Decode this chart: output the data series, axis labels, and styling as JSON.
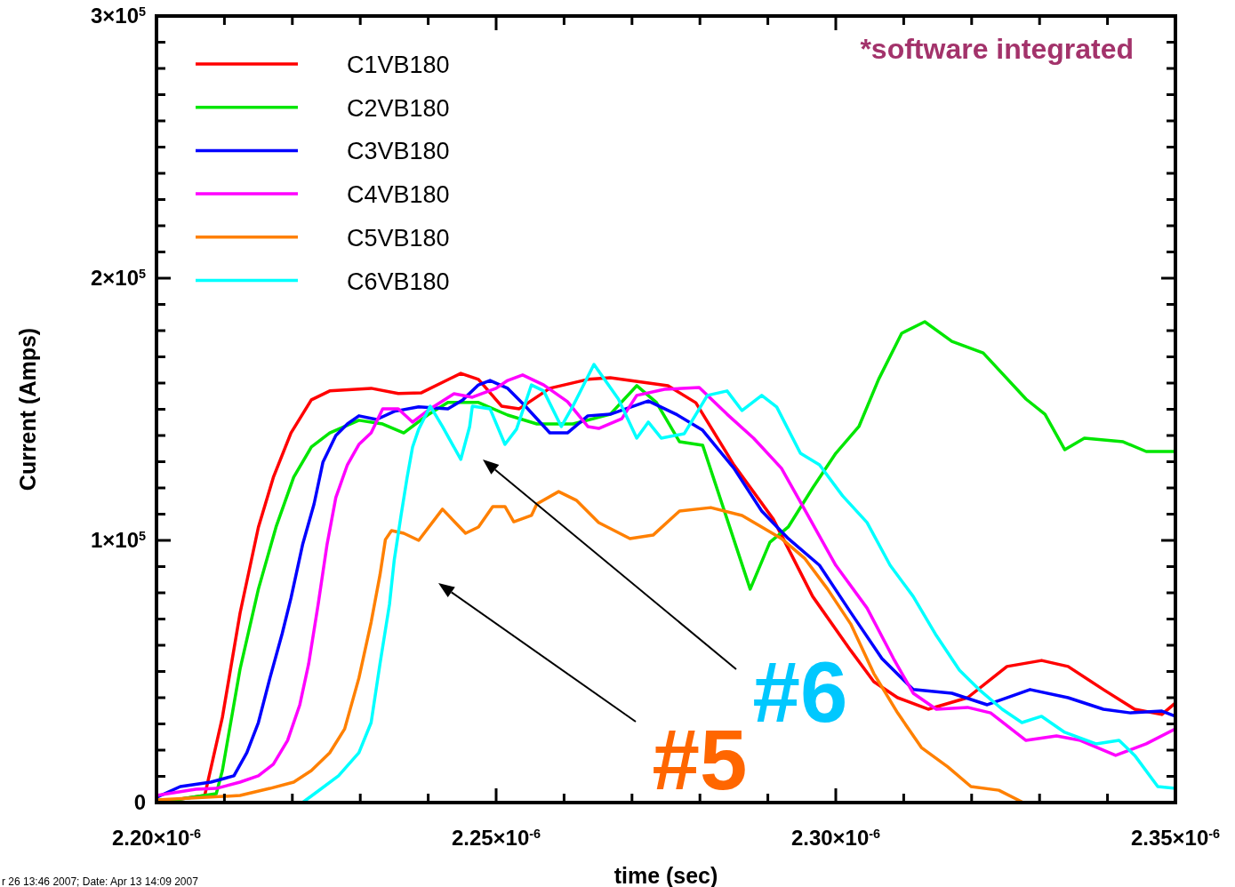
{
  "chart_data": {
    "type": "line",
    "xlabel": "time (sec)",
    "ylabel": "Current (Amps)",
    "legend": "top left",
    "marker": "none",
    "line_style": "solid",
    "grid": false,
    "xlim": [
      2.2e-06,
      2.35e-06
    ],
    "ylim": [
      0,
      300000
    ],
    "xticks": [
      {
        "value": 2.2e-06,
        "label": "2.20×10$^{-6}$"
      },
      {
        "value": 2.21e-06,
        "label": null
      },
      {
        "value": 2.22e-06,
        "label": null
      },
      {
        "value": 2.23e-06,
        "label": null
      },
      {
        "value": 2.24e-06,
        "label": null
      },
      {
        "value": 2.25e-06,
        "label": "2.25×10$^{-6}$"
      },
      {
        "value": 2.26e-06,
        "label": null
      },
      {
        "value": 2.27e-06,
        "label": null
      },
      {
        "value": 2.28e-06,
        "label": null
      },
      {
        "value": 2.29e-06,
        "label": null
      },
      {
        "value": 2.3e-06,
        "label": "2.30×10$^{-6}$"
      },
      {
        "value": 2.31e-06,
        "label": null
      },
      {
        "value": 2.32e-06,
        "label": null
      },
      {
        "value": 2.33e-06,
        "label": null
      },
      {
        "value": 2.34e-06,
        "label": null
      },
      {
        "value": 2.35e-06,
        "label": "2.35×10$^{-6}$"
      }
    ],
    "yticks": [
      0,
      {
        "value": 10000,
        "label": null
      },
      {
        "value": 20000,
        "label": null
      },
      {
        "value": 30000,
        "label": null
      },
      {
        "value": 40000,
        "label": null
      },
      {
        "value": 50000,
        "label": null
      },
      {
        "value": 60000,
        "label": null
      },
      {
        "value": 70000,
        "label": null
      },
      {
        "value": 80000,
        "label": null
      },
      {
        "value": 90000,
        "label": null
      },
      {
        "value": 100000,
        "label": "1×10$^{5}$"
      },
      {
        "value": 110000,
        "label": null
      },
      {
        "value": 120000,
        "label": null
      },
      {
        "value": 130000,
        "label": null
      },
      {
        "value": 140000,
        "label": null
      },
      {
        "value": 150000,
        "label": null
      },
      {
        "value": 160000,
        "label": null
      },
      {
        "value": 170000,
        "label": null
      },
      {
        "value": 180000,
        "label": null
      },
      {
        "value": 190000,
        "label": null
      },
      {
        "value": 200000,
        "label": "2×10$^{5}$"
      },
      {
        "value": 210000,
        "label": null
      },
      {
        "value": 220000,
        "label": null
      },
      {
        "value": 230000,
        "label": null
      },
      {
        "value": 240000,
        "label": null
      },
      {
        "value": 250000,
        "label": null
      },
      {
        "value": 260000,
        "label": null
      },
      {
        "value": 270000,
        "label": null
      },
      {
        "value": 280000,
        "label": null
      },
      {
        "value": 290000,
        "label": null
      },
      {
        "value": 300000,
        "label": "3×10$^{5}$"
      }
    ],
    "annotations": [
      "*software integrated",
      "#6",
      "#5",
      "r 26 13:46 2007; Date: Apr 13 14:09 2007"
    ],
    "series": [
      {
        "name": "C1VB180",
        "color": "#ff0000",
        "x": [
          2.2e-06,
          2.2071e-06,
          2.2097e-06,
          2.2123e-06,
          2.215e-06,
          2.2172e-06,
          2.2198e-06,
          2.2228e-06,
          2.2255e-06,
          2.2316e-06,
          2.2356e-06,
          2.239e-06,
          2.2448e-06,
          2.2474e-06,
          2.2508e-06,
          2.2534e-06,
          2.2579e-06,
          2.2635e-06,
          2.2668e-06,
          2.2753e-06,
          2.2794e-06,
          2.285e-06,
          2.2908e-06,
          2.2966e-06,
          2.3022e-06,
          2.3056e-06,
          2.3091e-06,
          2.3136e-06,
          2.3194e-06,
          2.3252e-06,
          2.3303e-06,
          2.3342e-06,
          2.3394e-06,
          2.344e-06,
          2.348e-06,
          2.35e-06
        ],
        "values": [
          0,
          2700,
          32500,
          72200,
          105000,
          124000,
          141000,
          153600,
          157000,
          158000,
          156000,
          156300,
          163700,
          161400,
          151200,
          150200,
          158000,
          161400,
          162000,
          159000,
          152500,
          128800,
          108100,
          78600,
          58000,
          46100,
          40000,
          35600,
          40000,
          51900,
          54200,
          51900,
          43100,
          35600,
          33600,
          38000
        ]
      },
      {
        "name": "C2VB180",
        "color": "#00e600",
        "x": [
          2.2e-06,
          2.2088e-06,
          2.2097e-06,
          2.2123e-06,
          2.215e-06,
          2.2176e-06,
          2.2202e-06,
          2.2228e-06,
          2.2255e-06,
          2.2298e-06,
          2.2333e-06,
          2.2364e-06,
          2.2399e-06,
          2.2429e-06,
          2.2474e-06,
          2.2517e-06,
          2.256e-06,
          2.2613e-06,
          2.2668e-06,
          2.2707e-06,
          2.2736e-06,
          2.277e-06,
          2.2804e-06,
          2.284e-06,
          2.2874e-06,
          2.2903e-06,
          2.293e-06,
          2.2966e-06,
          2.3e-06,
          2.3034e-06,
          2.3063e-06,
          2.3097e-06,
          2.3131e-06,
          2.3171e-06,
          2.3217e-06,
          2.328e-06,
          2.3308e-06,
          2.3337e-06,
          2.3366e-06,
          2.3423e-06,
          2.3457e-06,
          2.35e-06
        ],
        "values": [
          0,
          3400,
          12200,
          50900,
          81400,
          105100,
          124100,
          135600,
          141000,
          145800,
          144400,
          141000,
          147800,
          152600,
          152600,
          147800,
          144400,
          144400,
          148100,
          159000,
          152600,
          137600,
          136300,
          108100,
          81400,
          99300,
          105100,
          120000,
          133200,
          143400,
          161400,
          179000,
          183400,
          175900,
          171500,
          153900,
          148100,
          134600,
          139000,
          137600,
          133900,
          133900
        ]
      },
      {
        "name": "C3VB180",
        "color": "#0000ff",
        "x": [
          2.2e-06,
          2.2035e-06,
          2.208e-06,
          2.2114e-06,
          2.2133e-06,
          2.215e-06,
          2.2167e-06,
          2.2185e-06,
          2.2198e-06,
          2.2215e-06,
          2.2232e-06,
          2.2245e-06,
          2.2264e-06,
          2.2281e-06,
          2.2298e-06,
          2.2324e-06,
          2.235e-06,
          2.2386e-06,
          2.2429e-06,
          2.2451e-06,
          2.2474e-06,
          2.2491e-06,
          2.2517e-06,
          2.2543e-06,
          2.2579e-06,
          2.2605e-06,
          2.2635e-06,
          2.2668e-06,
          2.2724e-06,
          2.2765e-06,
          2.2804e-06,
          2.285e-06,
          2.2891e-06,
          2.293e-06,
          2.2976e-06,
          2.3022e-06,
          2.3068e-06,
          2.3114e-06,
          2.3171e-06,
          2.3223e-06,
          2.3286e-06,
          2.3342e-06,
          2.3394e-06,
          2.3434e-06,
          2.348e-06,
          2.35e-06
        ],
        "values": [
          2000,
          6100,
          7800,
          10200,
          19000,
          30500,
          47500,
          64400,
          78000,
          98300,
          113900,
          129800,
          140000,
          144400,
          147500,
          146100,
          149200,
          150900,
          150200,
          153600,
          159300,
          161000,
          158000,
          151200,
          141000,
          141000,
          147500,
          148100,
          153200,
          148100,
          142000,
          127500,
          111200,
          100700,
          90500,
          72500,
          54900,
          43100,
          41700,
          37300,
          43100,
          40000,
          35600,
          34200,
          34900,
          32900
        ]
      },
      {
        "name": "C4VB180",
        "color": "#ff00ff",
        "x": [
          2.2e-06,
          2.2058e-06,
          2.2088e-06,
          2.2123e-06,
          2.215e-06,
          2.2172e-06,
          2.2193e-06,
          2.2211e-06,
          2.2224e-06,
          2.2238e-06,
          2.2251e-06,
          2.2264e-06,
          2.2281e-06,
          2.2298e-06,
          2.2316e-06,
          2.2333e-06,
          2.2356e-06,
          2.2377e-06,
          2.2403e-06,
          2.2438e-06,
          2.2465e-06,
          2.25e-06,
          2.2517e-06,
          2.2539e-06,
          2.257e-06,
          2.2605e-06,
          2.2635e-06,
          2.2651e-06,
          2.2685e-06,
          2.2707e-06,
          2.2748e-06,
          2.2799e-06,
          2.284e-06,
          2.2879e-06,
          2.292e-06,
          2.2959e-06,
          2.3e-06,
          2.3046e-06,
          2.3085e-06,
          2.3114e-06,
          2.3148e-06,
          2.3194e-06,
          2.3228e-06,
          2.328e-06,
          2.3325e-06,
          2.336e-06,
          2.3412e-06,
          2.3457e-06,
          2.35e-06
        ],
        "values": [
          2700,
          5100,
          5400,
          7800,
          10200,
          14600,
          23700,
          37300,
          52900,
          75600,
          98300,
          116300,
          128800,
          136600,
          141000,
          150200,
          150200,
          145100,
          150200,
          155900,
          154600,
          158000,
          161000,
          163100,
          159300,
          152900,
          143400,
          142700,
          146400,
          155300,
          157600,
          158300,
          148100,
          139000,
          127500,
          109500,
          90500,
          74200,
          54900,
          41700,
          35600,
          36300,
          34200,
          23700,
          25400,
          23700,
          18000,
          22400,
          28100
        ]
      },
      {
        "name": "C5VB180",
        "color": "#ff8000",
        "x": [
          2.2e-06,
          2.2123e-06,
          2.2167e-06,
          2.2202e-06,
          2.2228e-06,
          2.2255e-06,
          2.2277e-06,
          2.2298e-06,
          2.2316e-06,
          2.2329e-06,
          2.2337e-06,
          2.2346e-06,
          2.2364e-06,
          2.2386e-06,
          2.2421e-06,
          2.2455e-06,
          2.2474e-06,
          2.2495e-06,
          2.2513e-06,
          2.2526e-06,
          2.2552e-06,
          2.256e-06,
          2.2592e-06,
          2.2618e-06,
          2.2651e-06,
          2.2697e-06,
          2.2731e-06,
          2.277e-06,
          2.2816e-06,
          2.2862e-06,
          2.2891e-06,
          2.292e-06,
          2.2954e-06,
          2.2988e-06,
          2.3022e-06,
          2.3056e-06,
          2.3091e-06,
          2.3126e-06,
          2.3165e-06,
          2.3199e-06,
          2.324e-06,
          2.3276e-06
        ],
        "values": [
          1000,
          2700,
          5400,
          7800,
          12200,
          19000,
          28100,
          47500,
          68800,
          86800,
          100300,
          103700,
          102700,
          100000,
          111900,
          102700,
          105100,
          112900,
          112900,
          107100,
          109500,
          113900,
          118600,
          115300,
          106800,
          100700,
          102000,
          111200,
          112500,
          109500,
          105100,
          100700,
          93200,
          81400,
          68100,
          49200,
          34200,
          21000,
          13600,
          6100,
          4700,
          0
        ]
      },
      {
        "name": "C6VB180",
        "color": "#00ffff",
        "x": [
          2.2215e-06,
          2.2238e-06,
          2.2268e-06,
          2.2298e-06,
          2.2316e-06,
          2.2329e-06,
          2.2343e-06,
          2.235e-06,
          2.236e-06,
          2.2369e-06,
          2.2377e-06,
          2.2386e-06,
          2.2403e-06,
          2.2421e-06,
          2.2448e-06,
          2.2461e-06,
          2.2465e-06,
          2.2491e-06,
          2.2513e-06,
          2.253e-06,
          2.2552e-06,
          2.257e-06,
          2.2596e-06,
          2.2613e-06,
          2.2644e-06,
          2.268e-06,
          2.2707e-06,
          2.2724e-06,
          2.2743e-06,
          2.2777e-06,
          2.2811e-06,
          2.284e-06,
          2.2862e-06,
          2.2891e-06,
          2.2913e-06,
          2.2948e-06,
          2.2976e-06,
          2.301e-06,
          2.3046e-06,
          2.308e-06,
          2.3114e-06,
          2.3148e-06,
          2.3182e-06,
          2.3211e-06,
          2.3245e-06,
          2.3274e-06,
          2.3303e-06,
          2.3337e-06,
          2.3383e-06,
          2.3417e-06,
          2.344e-06,
          2.3474e-06,
          2.35e-06
        ],
        "values": [
          0,
          4400,
          10200,
          19000,
          30500,
          52900,
          75600,
          92500,
          109500,
          124100,
          135600,
          142400,
          151200,
          143400,
          130900,
          143400,
          151200,
          150200,
          136600,
          142400,
          159300,
          157000,
          143400,
          151200,
          167100,
          153900,
          139000,
          145100,
          139000,
          140700,
          155300,
          157000,
          149500,
          155300,
          150900,
          133200,
          128800,
          117000,
          106800,
          90500,
          78600,
          63700,
          50500,
          43100,
          35600,
          30500,
          32900,
          26800,
          22400,
          23700,
          18000,
          6100,
          5400
        ]
      }
    ]
  }
}
